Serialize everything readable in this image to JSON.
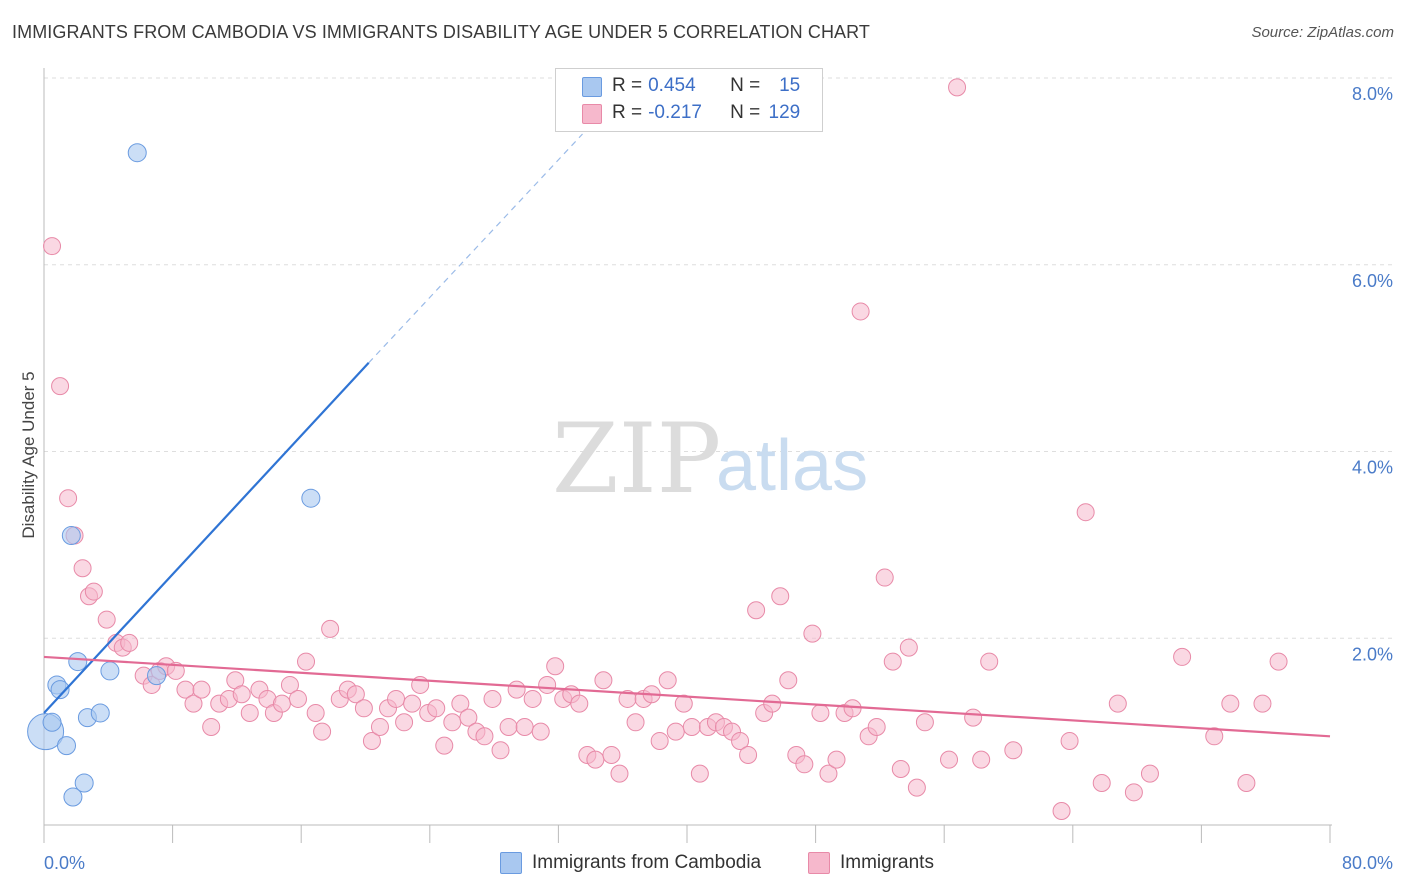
{
  "title": "IMMIGRANTS FROM CAMBODIA VS IMMIGRANTS DISABILITY AGE UNDER 5 CORRELATION CHART",
  "source": "Source: ZipAtlas.com",
  "watermark": {
    "zip": "ZIP",
    "atlas": "atlas"
  },
  "legend": {
    "rows": [
      {
        "r_label": "R = ",
        "r_value": "0.454",
        "n_label": "N = ",
        "n_value": "15",
        "color": "#a9c8f0"
      },
      {
        "r_label": "R = ",
        "r_value": "-0.217",
        "n_label": "N = ",
        "n_value": "129",
        "color": "#f6b8cc"
      }
    ]
  },
  "bottom_legend": [
    {
      "label": "Immigrants from Cambodia",
      "color": "#a9c8f0"
    },
    {
      "label": "Immigrants",
      "color": "#f6b8cc"
    }
  ],
  "chart_data": {
    "type": "scatter",
    "title": "IMMIGRANTS FROM CAMBODIA VS IMMIGRANTS DISABILITY AGE UNDER 5 CORRELATION CHART",
    "xlabel": "",
    "ylabel": "Disability Age Under 5",
    "xlim": [
      0,
      80
    ],
    "ylim": [
      0,
      8
    ],
    "x_tick_labels": [
      "0.0%",
      "80.0%"
    ],
    "y_ticks": [
      2,
      4,
      6,
      8
    ],
    "y_tick_labels": [
      "2.0%",
      "4.0%",
      "6.0%",
      "8.0%"
    ],
    "grid": true,
    "series": [
      {
        "name": "Immigrants from Cambodia",
        "color": "#a9c8f0",
        "edge": "#6a9be0",
        "points": [
          [
            0.1,
            1.0,
            18
          ],
          [
            0.5,
            1.1,
            9
          ],
          [
            0.8,
            1.5,
            9
          ],
          [
            1.0,
            1.45,
            9
          ],
          [
            1.4,
            0.85,
            9
          ],
          [
            1.7,
            3.1,
            9
          ],
          [
            1.8,
            0.3,
            9
          ],
          [
            2.1,
            1.75,
            9
          ],
          [
            2.5,
            0.45,
            9
          ],
          [
            2.7,
            1.15,
            9
          ],
          [
            3.5,
            1.2,
            9
          ],
          [
            4.1,
            1.65,
            9
          ],
          [
            5.8,
            7.2,
            9
          ],
          [
            7.0,
            1.6,
            9
          ],
          [
            16.6,
            3.5,
            9
          ]
        ],
        "trend": {
          "x": [
            0,
            20.2
          ],
          "y": [
            1.2,
            4.95
          ],
          "dashed_to": [
            33.5,
            7.4
          ]
        }
      },
      {
        "name": "Immigrants",
        "color": "#f6b8cc",
        "edge": "#e88aa8",
        "points": [
          [
            0.5,
            6.2
          ],
          [
            1.0,
            4.7
          ],
          [
            1.5,
            3.5
          ],
          [
            1.9,
            3.1
          ],
          [
            2.4,
            2.75
          ],
          [
            2.8,
            2.45
          ],
          [
            3.1,
            2.5
          ],
          [
            3.9,
            2.2
          ],
          [
            4.5,
            1.95
          ],
          [
            4.9,
            1.9
          ],
          [
            5.3,
            1.95
          ],
          [
            6.2,
            1.6
          ],
          [
            6.7,
            1.5
          ],
          [
            7.2,
            1.65
          ],
          [
            7.6,
            1.7
          ],
          [
            8.2,
            1.65
          ],
          [
            8.8,
            1.45
          ],
          [
            9.3,
            1.3
          ],
          [
            9.8,
            1.45
          ],
          [
            10.4,
            1.05
          ],
          [
            10.9,
            1.3
          ],
          [
            11.5,
            1.35
          ],
          [
            11.9,
            1.55
          ],
          [
            12.3,
            1.4
          ],
          [
            12.8,
            1.2
          ],
          [
            13.4,
            1.45
          ],
          [
            13.9,
            1.35
          ],
          [
            14.3,
            1.2
          ],
          [
            14.8,
            1.3
          ],
          [
            15.3,
            1.5
          ],
          [
            15.8,
            1.35
          ],
          [
            16.3,
            1.75
          ],
          [
            16.9,
            1.2
          ],
          [
            17.3,
            1.0
          ],
          [
            17.8,
            2.1
          ],
          [
            18.4,
            1.35
          ],
          [
            18.9,
            1.45
          ],
          [
            19.4,
            1.4
          ],
          [
            19.9,
            1.25
          ],
          [
            20.4,
            0.9
          ],
          [
            20.9,
            1.05
          ],
          [
            21.4,
            1.25
          ],
          [
            21.9,
            1.35
          ],
          [
            22.4,
            1.1
          ],
          [
            22.9,
            1.3
          ],
          [
            23.4,
            1.5
          ],
          [
            23.9,
            1.2
          ],
          [
            24.4,
            1.25
          ],
          [
            24.9,
            0.85
          ],
          [
            25.4,
            1.1
          ],
          [
            25.9,
            1.3
          ],
          [
            26.4,
            1.15
          ],
          [
            26.9,
            1.0
          ],
          [
            27.4,
            0.95
          ],
          [
            27.9,
            1.35
          ],
          [
            28.4,
            0.8
          ],
          [
            28.9,
            1.05
          ],
          [
            29.4,
            1.45
          ],
          [
            29.9,
            1.05
          ],
          [
            30.4,
            1.35
          ],
          [
            30.9,
            1.0
          ],
          [
            31.3,
            1.5
          ],
          [
            31.8,
            1.7
          ],
          [
            32.3,
            1.35
          ],
          [
            32.8,
            1.4
          ],
          [
            33.3,
            1.3
          ],
          [
            33.8,
            0.75
          ],
          [
            34.3,
            0.7
          ],
          [
            34.8,
            1.55
          ],
          [
            35.3,
            0.75
          ],
          [
            35.8,
            0.55
          ],
          [
            36.3,
            1.35
          ],
          [
            36.8,
            1.1
          ],
          [
            37.3,
            1.35
          ],
          [
            37.8,
            1.4
          ],
          [
            38.3,
            0.9
          ],
          [
            38.8,
            1.55
          ],
          [
            39.3,
            1.0
          ],
          [
            39.8,
            1.3
          ],
          [
            40.3,
            1.05
          ],
          [
            40.8,
            0.55
          ],
          [
            41.3,
            1.05
          ],
          [
            41.8,
            1.1
          ],
          [
            42.3,
            1.05
          ],
          [
            42.8,
            1.0
          ],
          [
            43.3,
            0.9
          ],
          [
            43.8,
            0.75
          ],
          [
            44.3,
            2.3
          ],
          [
            44.8,
            1.2
          ],
          [
            45.3,
            1.3
          ],
          [
            45.8,
            2.45
          ],
          [
            46.3,
            1.55
          ],
          [
            46.8,
            0.75
          ],
          [
            47.3,
            0.65
          ],
          [
            47.8,
            2.05
          ],
          [
            48.3,
            1.2
          ],
          [
            48.8,
            0.55
          ],
          [
            49.3,
            0.7
          ],
          [
            49.8,
            1.2
          ],
          [
            50.3,
            1.25
          ],
          [
            50.8,
            5.5
          ],
          [
            51.3,
            0.95
          ],
          [
            51.8,
            1.05
          ],
          [
            52.3,
            2.65
          ],
          [
            52.8,
            1.75
          ],
          [
            53.3,
            0.6
          ],
          [
            53.8,
            1.9
          ],
          [
            54.3,
            0.4
          ],
          [
            54.8,
            1.1
          ],
          [
            56.3,
            0.7
          ],
          [
            56.8,
            7.9
          ],
          [
            57.8,
            1.15
          ],
          [
            58.3,
            0.7
          ],
          [
            58.8,
            1.75
          ],
          [
            60.3,
            0.8
          ],
          [
            63.3,
            0.15
          ],
          [
            63.8,
            0.9
          ],
          [
            64.8,
            3.35
          ],
          [
            65.8,
            0.45
          ],
          [
            66.8,
            1.3
          ],
          [
            67.8,
            0.35
          ],
          [
            68.8,
            0.55
          ],
          [
            70.8,
            1.8
          ],
          [
            72.8,
            0.95
          ],
          [
            73.8,
            1.3
          ],
          [
            74.8,
            0.45
          ],
          [
            75.8,
            1.3
          ],
          [
            76.8,
            1.75
          ]
        ],
        "trend": {
          "x": [
            0,
            80
          ],
          "y": [
            1.8,
            0.95
          ]
        }
      }
    ]
  }
}
